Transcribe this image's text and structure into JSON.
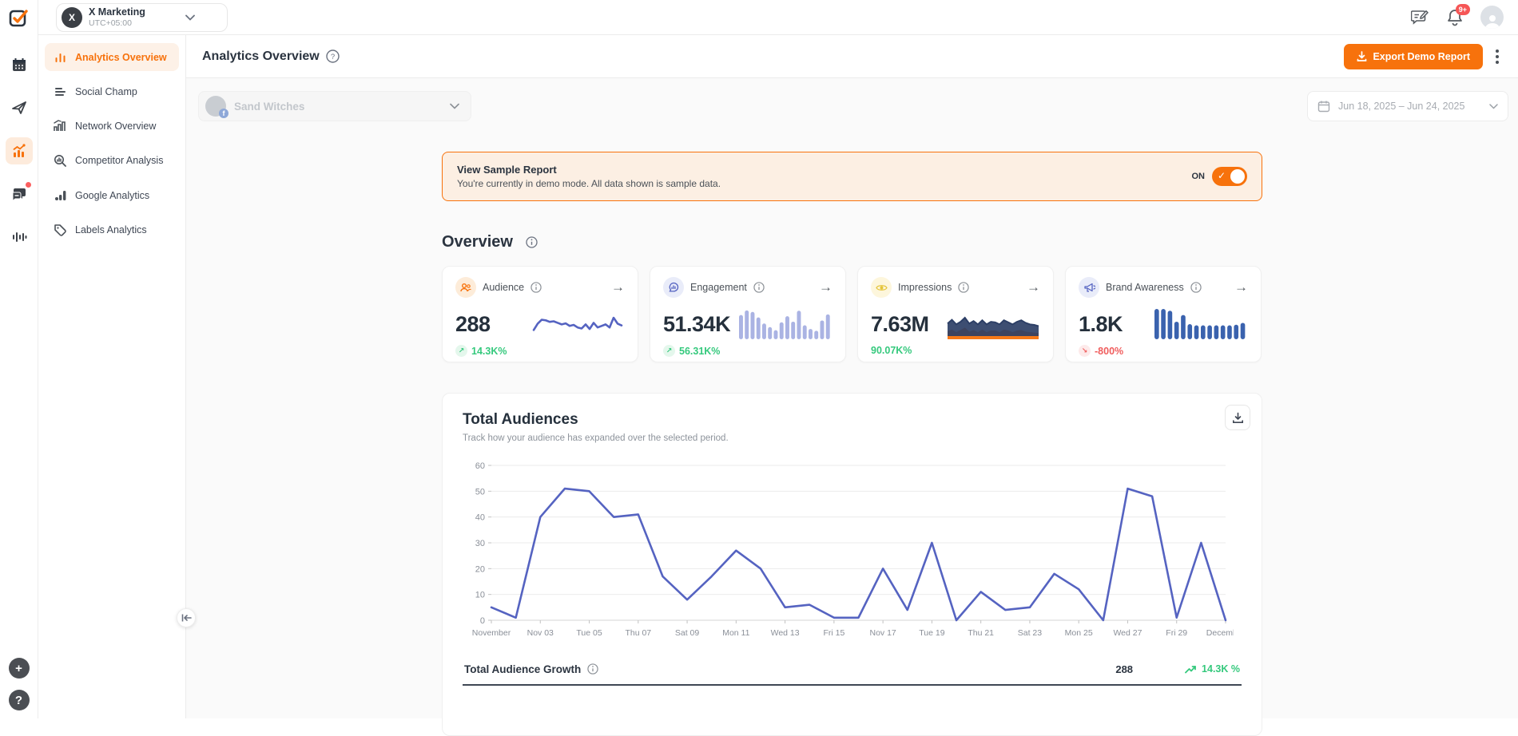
{
  "brand": {
    "accent": "#F7720C",
    "green": "#35C97D",
    "red": "#F05D5D",
    "indigo": "#5563C1"
  },
  "topbar": {
    "workspace": {
      "initial": "X",
      "name": "X Marketing",
      "timezone": "UTC+05:00"
    },
    "notifications_badge": "9+"
  },
  "rail_icons": [
    "app-logo",
    "calendar",
    "publish",
    "analytics",
    "engage",
    "social-listening",
    "add",
    "help"
  ],
  "sidebar": {
    "items": [
      {
        "label": "Analytics Overview",
        "active": true
      },
      {
        "label": "Social Champ",
        "active": false
      },
      {
        "label": "Network Overview",
        "active": false
      },
      {
        "label": "Competitor Analysis",
        "active": false
      },
      {
        "label": "Google Analytics",
        "active": false
      },
      {
        "label": "Labels Analytics",
        "active": false
      }
    ]
  },
  "header": {
    "title": "Analytics Overview",
    "export_label": "Export Demo Report"
  },
  "filters": {
    "profile": "Sand Witches",
    "date_range": "Jun 18, 2025 – Jun 24, 2025"
  },
  "banner": {
    "title": "View Sample Report",
    "subtitle": "You're currently in demo mode. All data shown is sample data.",
    "toggle_label": "ON",
    "toggle_state": "on"
  },
  "overview": {
    "heading": "Overview",
    "cards": [
      {
        "title": "Audience",
        "value": "288",
        "delta": "14.3K%",
        "delta_direction": "up",
        "icon": "audience-people-icon"
      },
      {
        "title": "Engagement",
        "value": "51.34K",
        "delta": "56.31K%",
        "delta_direction": "up",
        "icon": "engagement-chat-icon"
      },
      {
        "title": "Impressions",
        "value": "7.63M",
        "delta": "90.07K%",
        "delta_direction": "up",
        "icon": "impressions-eye-icon"
      },
      {
        "title": "Brand Awareness",
        "value": "1.8K",
        "delta": "-800%",
        "delta_direction": "down",
        "icon": "brand-megaphone-icon"
      }
    ]
  },
  "total_audiences": {
    "title": "Total Audiences",
    "subtitle": "Track how your audience has expanded over the selected period.",
    "footer": {
      "label": "Total Audience Growth",
      "value": "288",
      "delta": "14.3K %"
    }
  },
  "chart_data": [
    {
      "id": "total_audiences",
      "type": "line",
      "title": "Total Audiences",
      "x": [
        "Nov 01",
        "Nov 02",
        "Nov 03",
        "Nov 04",
        "Nov 05",
        "Nov 06",
        "Nov 07",
        "Nov 08",
        "Nov 09",
        "Nov 10",
        "Nov 11",
        "Nov 12",
        "Nov 13",
        "Nov 14",
        "Nov 15",
        "Nov 16",
        "Nov 17",
        "Nov 18",
        "Nov 19",
        "Nov 20",
        "Nov 21",
        "Nov 22",
        "Nov 23",
        "Nov 24",
        "Nov 25",
        "Nov 26",
        "Nov 27",
        "Nov 28",
        "Nov 29",
        "Nov 30",
        "Dec 01"
      ],
      "values": [
        5,
        1,
        40,
        51,
        50,
        40,
        41,
        17,
        8,
        17,
        27,
        20,
        5,
        6,
        1,
        1,
        20,
        4,
        30,
        0,
        11,
        4,
        5,
        18,
        12,
        0,
        51,
        48,
        1,
        30,
        0
      ],
      "xtick_labels": [
        "November",
        "Nov 03",
        "Tue 05",
        "Thu 07",
        "Sat 09",
        "Mon 11",
        "Wed 13",
        "Fri 15",
        "Nov 17",
        "Tue 19",
        "Thu 21",
        "Sat 23",
        "Mon 25",
        "Wed 27",
        "Fri 29",
        "December"
      ],
      "ylim": [
        0,
        60
      ],
      "yticks": [
        0,
        10,
        20,
        30,
        40,
        50,
        60
      ],
      "grid": true,
      "legend": "none",
      "line_color": "#5563C1"
    },
    {
      "id": "audience_spark",
      "type": "line",
      "line_color": "#5563C1",
      "values": [
        30,
        55,
        70,
        68,
        62,
        64,
        58,
        52,
        56,
        46,
        50,
        40,
        36,
        52,
        34,
        58,
        40,
        46,
        52,
        40,
        78,
        55,
        48
      ]
    },
    {
      "id": "engagement_spark",
      "type": "bar",
      "bar_color": "#aab3e3",
      "values": [
        80,
        95,
        90,
        72,
        52,
        40,
        30,
        56,
        76,
        58,
        94,
        46,
        34,
        28,
        62,
        82
      ]
    },
    {
      "id": "impressions_spark",
      "type": "area2",
      "navy_color": "#2d3f66",
      "orange_color": "#f7720c",
      "navy": [
        55,
        70,
        52,
        62,
        78,
        55,
        65,
        52,
        68,
        52,
        62,
        60,
        52,
        68,
        60,
        52,
        62,
        68,
        58,
        52,
        50,
        45
      ],
      "orange": [
        25,
        32,
        22,
        30,
        40,
        24,
        30,
        22,
        32,
        22,
        28,
        28,
        22,
        32,
        28,
        22,
        28,
        30,
        24,
        22,
        20,
        18
      ]
    },
    {
      "id": "brand_spark",
      "type": "bar",
      "bar_color": "#3a62ae",
      "values": [
        100,
        100,
        94,
        58,
        80,
        50,
        46,
        46,
        46,
        46,
        46,
        46,
        48,
        54
      ]
    }
  ]
}
